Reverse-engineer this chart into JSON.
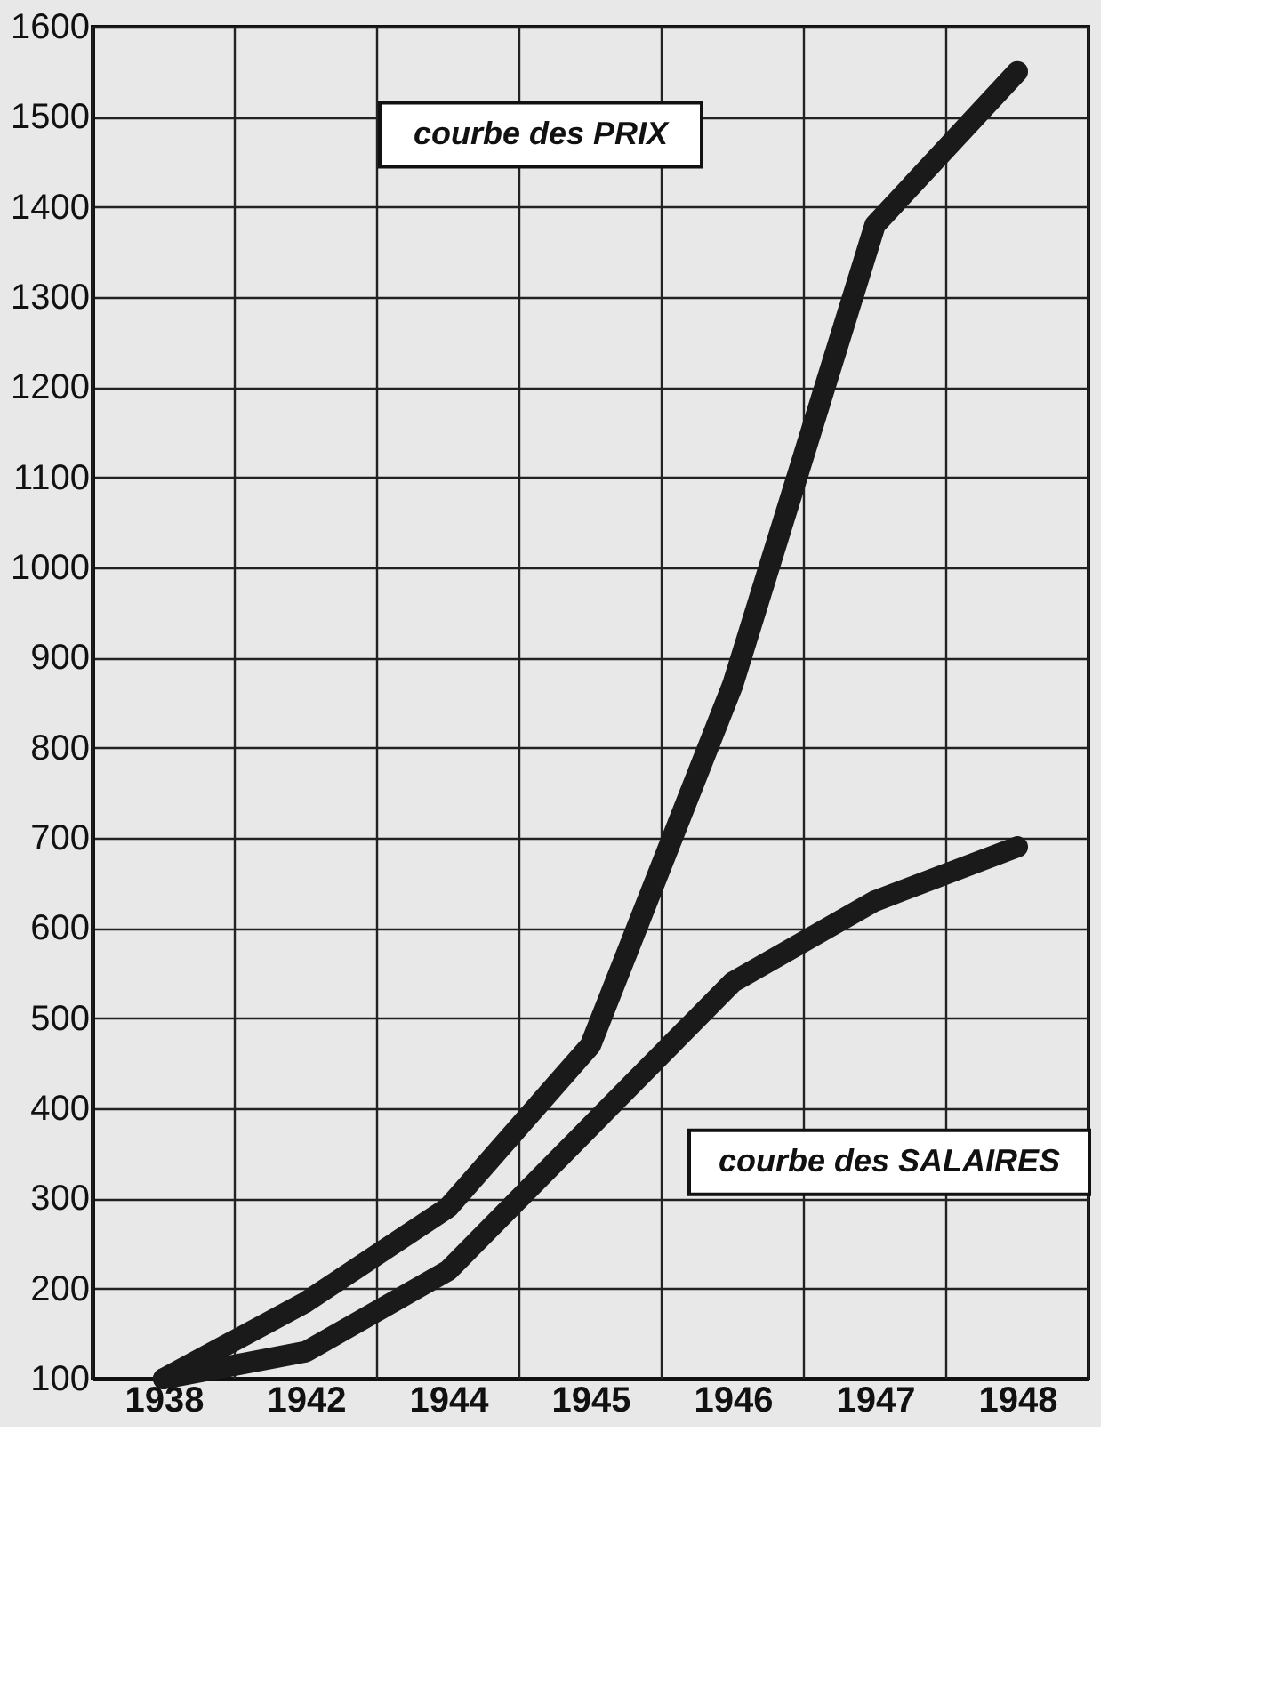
{
  "chart_data": {
    "type": "line",
    "categories": [
      "1938",
      "1942",
      "1944",
      "1945",
      "1946",
      "1947",
      "1948"
    ],
    "series": [
      {
        "color": "#1a1a1a",
        "values": [
          100,
          185,
          290,
          470,
          870,
          1380,
          1550
        ]
      },
      {
        "color": "#1a1a1a",
        "values": [
          100,
          130,
          220,
          380,
          540,
          630,
          690
        ]
      }
    ],
    "ylim": [
      100,
      1600
    ],
    "yticks": [
      100,
      200,
      300,
      400,
      500,
      600,
      700,
      800,
      900,
      1000,
      1100,
      1200,
      1300,
      1400,
      1500,
      1600
    ],
    "grid": true,
    "marker": "none",
    "line_style": "solid",
    "annotations": [
      "courbe des PRIX",
      "courbe des SALAIRES"
    ]
  }
}
